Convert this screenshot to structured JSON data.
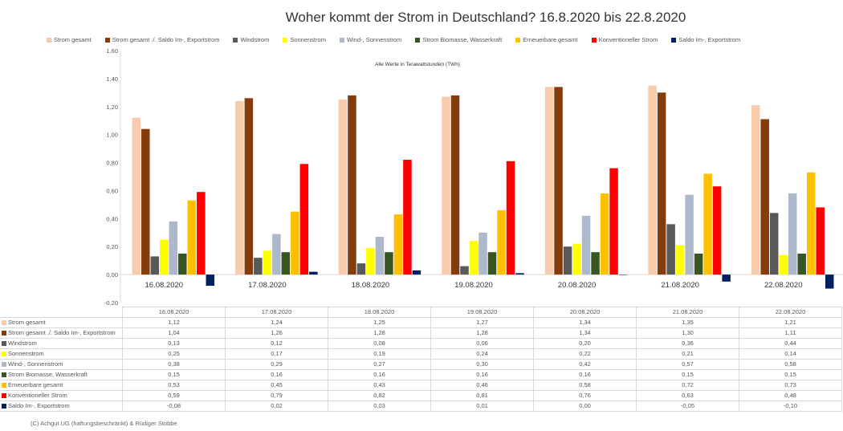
{
  "chart_data": {
    "type": "bar",
    "title": "Woher kommt der Strom in Deutschland? 16.8.2020 bis 22.8.2020",
    "subtitle": "Alle Werte in Terawattstunden (TWh)",
    "categories": [
      "16.08.2020",
      "17.08.2020",
      "18.08.2020",
      "19.08.2020",
      "20.08.2020",
      "21.08.2020",
      "22.08.2020"
    ],
    "ylim": [
      -0.2,
      1.6
    ],
    "yticks": [
      "-0,20",
      "0,00",
      "0,20",
      "0,40",
      "0,60",
      "0,80",
      "1,00",
      "1,20",
      "1,40",
      "1,60"
    ],
    "legend_position": "top",
    "series": [
      {
        "name": "Strom gesamt",
        "color": "#f8cbad",
        "values": [
          1.12,
          1.24,
          1.25,
          1.27,
          1.34,
          1.35,
          1.21
        ],
        "labels": [
          "1,12",
          "1,24",
          "1,25",
          "1,27",
          "1,34",
          "1,35",
          "1,21"
        ]
      },
      {
        "name": "Strom gesamt ./. Saldo Im-, Exportstrom",
        "color": "#843c0c",
        "values": [
          1.04,
          1.26,
          1.28,
          1.28,
          1.34,
          1.3,
          1.11
        ],
        "labels": [
          "1,04",
          "1,26",
          "1,28",
          "1,28",
          "1,34",
          "1,30",
          "1,11"
        ]
      },
      {
        "name": "Windstrom",
        "color": "#595959",
        "values": [
          0.13,
          0.12,
          0.08,
          0.06,
          0.2,
          0.36,
          0.44
        ],
        "labels": [
          "0,13",
          "0,12",
          "0,08",
          "0,06",
          "0,20",
          "0,36",
          "0,44"
        ]
      },
      {
        "name": "Sonnenstrom",
        "color": "#ffff00",
        "values": [
          0.25,
          0.17,
          0.19,
          0.24,
          0.22,
          0.21,
          0.14
        ],
        "labels": [
          "0,25",
          "0,17",
          "0,19",
          "0,24",
          "0,22",
          "0,21",
          "0,14"
        ]
      },
      {
        "name": "Wind-, Sonnenstrom",
        "color": "#adb9ca",
        "values": [
          0.38,
          0.29,
          0.27,
          0.3,
          0.42,
          0.57,
          0.58
        ],
        "labels": [
          "0,38",
          "0,29",
          "0,27",
          "0,30",
          "0,42",
          "0,57",
          "0,58"
        ]
      },
      {
        "name": "Strom Biomasse, Wasserkraft",
        "color": "#375623",
        "values": [
          0.15,
          0.16,
          0.16,
          0.16,
          0.16,
          0.15,
          0.15
        ],
        "labels": [
          "0,15",
          "0,16",
          "0,16",
          "0,16",
          "0,16",
          "0,15",
          "0,15"
        ]
      },
      {
        "name": "Erneuerbare gesamt",
        "color": "#ffc000",
        "values": [
          0.53,
          0.45,
          0.43,
          0.46,
          0.58,
          0.72,
          0.73
        ],
        "labels": [
          "0,53",
          "0,45",
          "0,43",
          "0,46",
          "0,58",
          "0,72",
          "0,73"
        ]
      },
      {
        "name": "Konventioneller Strom",
        "color": "#ff0000",
        "values": [
          0.59,
          0.79,
          0.82,
          0.81,
          0.76,
          0.63,
          0.48
        ],
        "labels": [
          "0,59",
          "0,79",
          "0,82",
          "0,81",
          "0,76",
          "0,63",
          "0,48"
        ]
      },
      {
        "name": "Saldo Im-, Exportstrom",
        "color": "#002060",
        "values": [
          -0.08,
          0.02,
          0.03,
          0.01,
          0.0,
          -0.05,
          -0.1
        ],
        "labels": [
          "-0,08",
          "0,02",
          "0,03",
          "0,01",
          "0,00",
          "-0,05",
          "-0,10"
        ]
      }
    ]
  },
  "copyright": "(C) Achgut UG (haftungsbeschränkt) & Rüdiger Stobbe"
}
